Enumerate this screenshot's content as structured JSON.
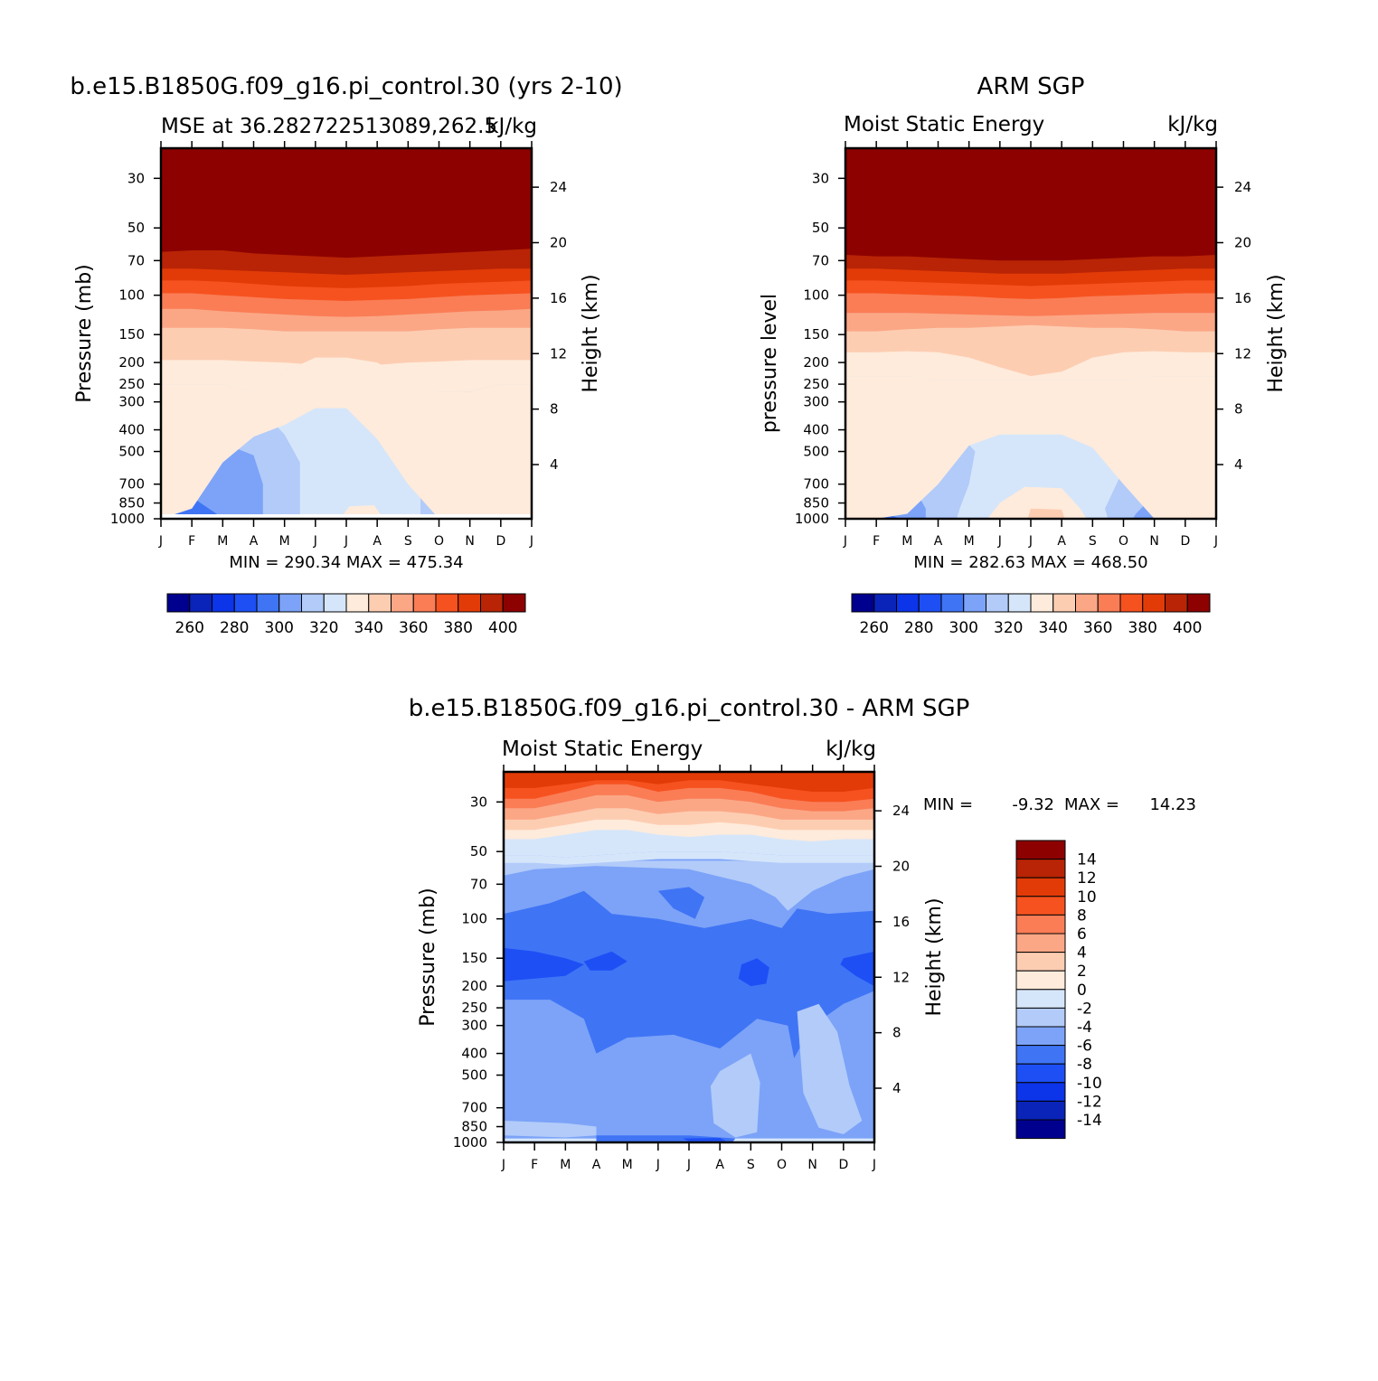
{
  "colors": [
    "#00008f",
    "#0a23b8",
    "#0c34e8",
    "#1d4ff5",
    "#3f74f5",
    "#7ca3f8",
    "#b2cbf9",
    "#d6e6fa",
    "#feebdb",
    "#fdcdb2",
    "#fba786",
    "#fa7d56",
    "#f6521f",
    "#e23b08",
    "#b82405",
    "#8d0200"
  ],
  "chart_data": [
    {
      "type": "contour",
      "id": "model",
      "title": "b.e15.B1850G.f09_g16.pi_control.30 (yrs 2-10)",
      "subtitle_left": "MSE at 36.282722513089,262.5",
      "subtitle_right": "kJ/kg",
      "ylabel": "Pressure (mb)",
      "ylabel_right": "Height (km)",
      "stats": "MIN = 290.34 MAX = 475.34",
      "x": [
        "J",
        "F",
        "M",
        "A",
        "M",
        "J",
        "J",
        "A",
        "S",
        "O",
        "N",
        "D",
        "J"
      ],
      "pressure_ticks": [
        "30",
        "50",
        "70",
        "100",
        "150",
        "200",
        "250",
        "300",
        "400",
        "500",
        "700",
        "850",
        "1000"
      ],
      "height_ticks": [
        "24",
        "20",
        "16",
        "12",
        "8",
        "4"
      ],
      "colorbar_labels": [
        "260",
        "280",
        "300",
        "320",
        "340",
        "360",
        "380",
        "400"
      ],
      "contour_levels": [
        320,
        330,
        340,
        350,
        360,
        370,
        380,
        390,
        400
      ],
      "level_boundaries_mb": {
        "320": [
          1000,
          900,
          560,
          430,
          380,
          320,
          320,
          440,
          700,
          1000,
          1000,
          1000,
          1000
        ],
        "330": [
          250,
          250,
          250,
          270,
          220,
          190,
          190,
          200,
          240,
          270,
          270,
          250,
          250
        ],
        "340": [
          195,
          195,
          195,
          198,
          200,
          205,
          210,
          205,
          200,
          198,
          195,
          195,
          195
        ],
        "350": [
          140,
          140,
          140,
          142,
          145,
          145,
          145,
          145,
          145,
          142,
          140,
          140,
          140
        ],
        "360": [
          115,
          115,
          118,
          120,
          122,
          124,
          125,
          124,
          122,
          120,
          118,
          117,
          115
        ],
        "370": [
          98,
          98,
          100,
          102,
          104,
          105,
          106,
          105,
          104,
          102,
          100,
          99,
          98
        ],
        "380": [
          86,
          86,
          87,
          89,
          91,
          92,
          93,
          92,
          91,
          89,
          88,
          87,
          86
        ],
        "390": [
          76,
          76,
          77,
          78,
          79,
          80,
          81,
          80,
          79,
          78,
          77,
          76,
          76
        ],
        "400": [
          64,
          63,
          63,
          65,
          66,
          67,
          68,
          67,
          66,
          65,
          64,
          63,
          62
        ]
      }
    },
    {
      "type": "contour",
      "id": "obs",
      "title": "ARM SGP",
      "subtitle_left": "Moist Static Energy",
      "subtitle_right": "kJ/kg",
      "ylabel": "pressure level",
      "ylabel_right": "Height (km)",
      "stats": "MIN = 282.63 MAX = 468.50",
      "x": [
        "J",
        "F",
        "M",
        "A",
        "M",
        "J",
        "J",
        "A",
        "S",
        "O",
        "N",
        "D",
        "J"
      ],
      "pressure_ticks": [
        "30",
        "50",
        "70",
        "100",
        "150",
        "200",
        "250",
        "300",
        "400",
        "500",
        "700",
        "850",
        "1000"
      ],
      "height_ticks": [
        "24",
        "20",
        "16",
        "12",
        "8",
        "4"
      ],
      "colorbar_labels": [
        "260",
        "280",
        "300",
        "320",
        "340",
        "360",
        "380",
        "400"
      ],
      "contour_levels": [
        320,
        330,
        340,
        350,
        360,
        370,
        380,
        390,
        400
      ],
      "level_boundaries_mb": {
        "320": [
          1000,
          1000,
          950,
          700,
          470,
          420,
          420,
          420,
          480,
          700,
          1000,
          1000,
          1000
        ],
        "330": [
          230,
          230,
          230,
          240,
          240,
          240,
          240,
          240,
          240,
          240,
          230,
          230,
          230
        ],
        "340": [
          180,
          180,
          178,
          180,
          190,
          210,
          230,
          220,
          190,
          180,
          178,
          180,
          180
        ],
        "350": [
          145,
          145,
          142,
          140,
          140,
          138,
          136,
          138,
          140,
          140,
          142,
          145,
          145
        ],
        "360": [
          120,
          120,
          120,
          121,
          122,
          123,
          124,
          123,
          122,
          121,
          120,
          120,
          120
        ],
        "370": [
          98,
          98,
          99,
          100,
          101,
          103,
          104,
          103,
          101,
          100,
          99,
          98,
          98
        ],
        "380": [
          86,
          86,
          87,
          88,
          89,
          90,
          91,
          90,
          89,
          88,
          87,
          86,
          86
        ],
        "390": [
          76,
          76,
          77,
          78,
          79,
          80,
          80,
          80,
          79,
          78,
          77,
          76,
          76
        ],
        "400": [
          66,
          67,
          67,
          68,
          69,
          70,
          70,
          70,
          69,
          68,
          67,
          67,
          66
        ]
      }
    },
    {
      "type": "contour",
      "id": "diff",
      "title": "b.e15.B1850G.f09_g16.pi_control.30 - ARM SGP",
      "subtitle_left": "Moist Static Energy",
      "subtitle_right": "kJ/kg",
      "ylabel": "Pressure (mb)",
      "ylabel_right": "Height (km)",
      "stats_min_label": "MIN =",
      "stats_min": "-9.32",
      "stats_max_label": "MAX =",
      "stats_max": "14.23",
      "x": [
        "J",
        "F",
        "M",
        "A",
        "M",
        "J",
        "J",
        "A",
        "S",
        "O",
        "N",
        "D",
        "J"
      ],
      "pressure_ticks": [
        "30",
        "50",
        "70",
        "100",
        "150",
        "200",
        "250",
        "300",
        "400",
        "500",
        "700",
        "850",
        "1000"
      ],
      "height_ticks": [
        "24",
        "20",
        "16",
        "12",
        "8",
        "4"
      ],
      "colorbar_labels": [
        "14",
        "12",
        "10",
        "8",
        "6",
        "4",
        "2",
        "0",
        "-2",
        "-4",
        "-6",
        "-8",
        "-10",
        "-12",
        "-14"
      ],
      "contour_levels": [
        -10,
        -8,
        -6,
        -4,
        -2,
        0,
        2,
        4,
        6,
        8,
        10,
        12
      ],
      "level_boundaries_mb": {
        "-4": [
          960,
          960,
          960,
          965,
          975,
          980,
          985,
          990,
          990,
          995,
          980,
          970,
          960
        ],
        "-2": [
          950,
          950,
          945,
          950,
          955,
          955,
          955,
          960,
          965,
          970,
          960,
          955,
          950
        ],
        "0": [
          52,
          52,
          53,
          52,
          51,
          50,
          50,
          50,
          51,
          52,
          52,
          52,
          52
        ],
        "2": [
          44,
          44,
          42,
          40,
          40,
          42,
          43,
          42,
          42,
          44,
          45,
          44,
          44
        ],
        "4": [
          40,
          40,
          38,
          36,
          36,
          38,
          38,
          37,
          38,
          40,
          40,
          40,
          40
        ],
        "6": [
          36,
          36,
          34,
          32,
          32,
          34,
          33,
          33,
          34,
          36,
          36,
          36,
          36
        ],
        "8": [
          32,
          32,
          30,
          28,
          28,
          30,
          29,
          29,
          30,
          32,
          33,
          33,
          32
        ],
        "10": [
          29,
          29,
          27,
          25,
          25,
          27,
          26,
          26,
          27,
          29,
          30,
          30,
          29
        ],
        "12": [
          26,
          26,
          25,
          24,
          24,
          25,
          24,
          24,
          25,
          26,
          27,
          27,
          26
        ]
      }
    }
  ]
}
